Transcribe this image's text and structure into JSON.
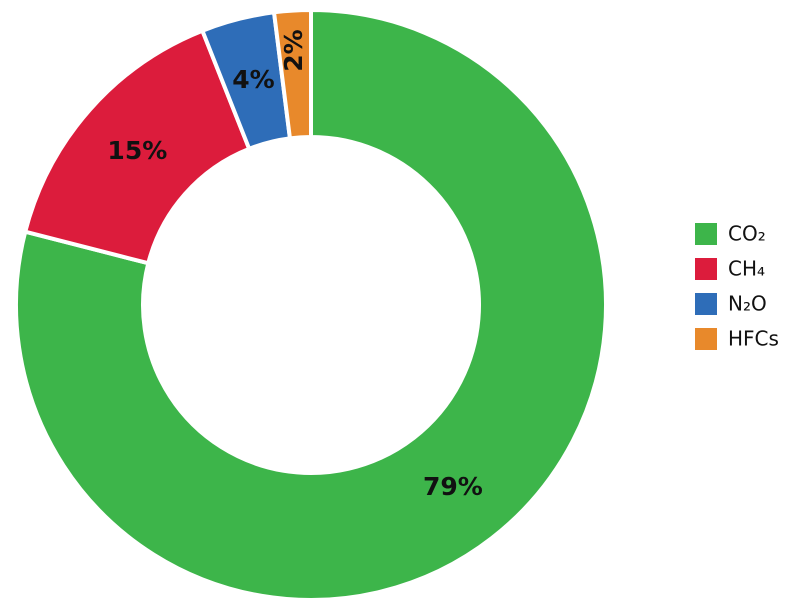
{
  "chart_data": {
    "type": "donut",
    "categories": [
      "CO₂",
      "CH₄",
      "N₂O",
      "HFCs"
    ],
    "values": [
      79,
      15,
      4,
      2
    ],
    "value_labels": [
      "79%",
      "15%",
      "4%",
      "2%"
    ],
    "colors": [
      "#3db54a",
      "#dc1c3c",
      "#2e6db8",
      "#e8892b"
    ],
    "legend": "right"
  }
}
